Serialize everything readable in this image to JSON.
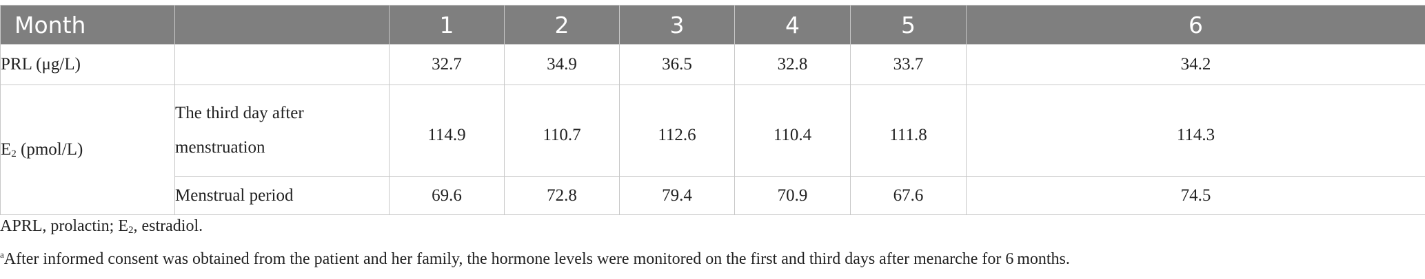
{
  "table": {
    "headers": [
      "Month",
      "",
      "1",
      "2",
      "3",
      "4",
      "5",
      "6"
    ],
    "prl_row": {
      "label": "PRL (μg/L)",
      "values": [
        "32.7",
        "34.9",
        "36.5",
        "32.8",
        "33.7",
        "34.2"
      ]
    },
    "e2": {
      "label_main": "E",
      "label_sub": "2",
      "label_unit": " (pmol/L)",
      "third_day": {
        "label_line1": "The third day after",
        "label_line2": "menstruation",
        "values": [
          "114.9",
          "110.7",
          "112.6",
          "110.4",
          "111.8",
          "114.3"
        ]
      },
      "menstrual_period": {
        "label": "Menstrual period",
        "values": [
          "69.6",
          "72.8",
          "79.4",
          "70.9",
          "67.6",
          "74.5"
        ]
      }
    }
  },
  "footnotes": {
    "abbrev_part1": "APRL, prolactin; E",
    "abbrev_sub": "2",
    "abbrev_part2": ", estradiol.",
    "note_marker": "a",
    "note_text": "After informed consent was obtained from the patient and her family, the hormone levels were monitored on the first and third days after menarche for 6 months."
  }
}
